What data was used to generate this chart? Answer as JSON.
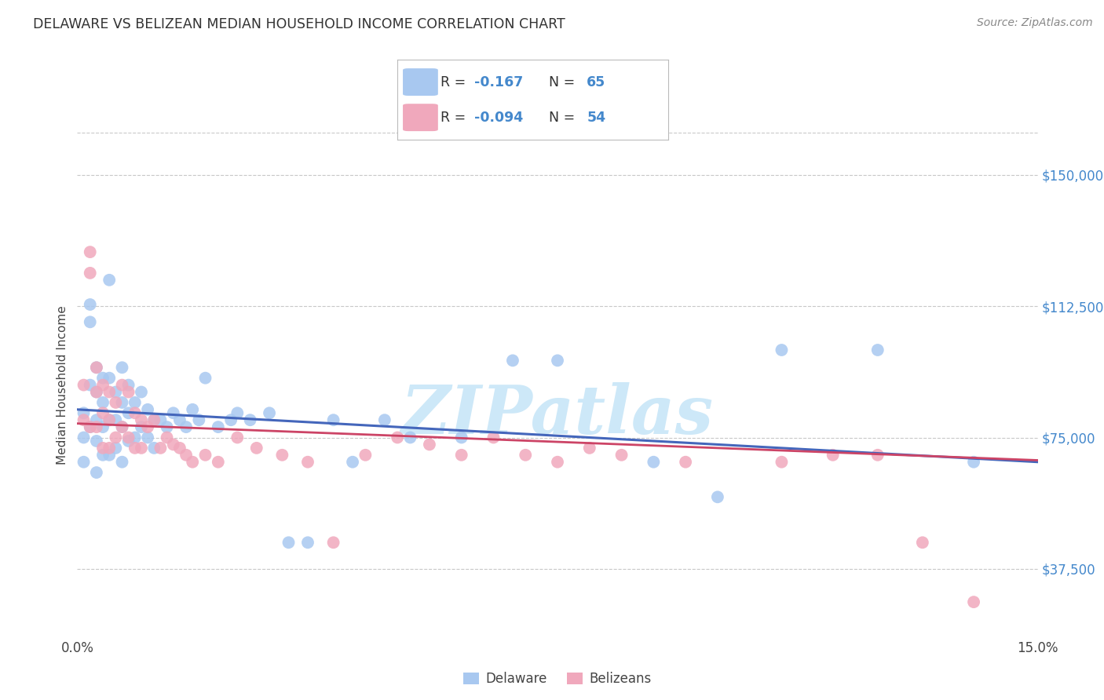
{
  "title": "DELAWARE VS BELIZEAN MEDIAN HOUSEHOLD INCOME CORRELATION CHART",
  "source": "Source: ZipAtlas.com",
  "ylabel": "Median Household Income",
  "xlim": [
    0.0,
    0.15
  ],
  "ylim": [
    18000,
    162000
  ],
  "yticks": [
    37500,
    75000,
    112500,
    150000
  ],
  "ytick_labels": [
    "$37,500",
    "$75,000",
    "$112,500",
    "$150,000"
  ],
  "xticks": [
    0.0,
    0.025,
    0.05,
    0.075,
    0.1,
    0.125,
    0.15
  ],
  "xtick_labels": [
    "0.0%",
    "",
    "",
    "",
    "",
    "",
    "15.0%"
  ],
  "background_color": "#ffffff",
  "grid_color": "#c8c8c8",
  "blue_color": "#a8c8f0",
  "pink_color": "#f0a8bc",
  "blue_line_color": "#4466bb",
  "pink_line_color": "#cc4466",
  "watermark_color": "#cde8f8",
  "accent_color": "#4488cc",
  "legend_r_blue": "-0.167",
  "legend_n_blue": "65",
  "legend_r_pink": "-0.094",
  "legend_n_pink": "54",
  "delaware_x": [
    0.001,
    0.001,
    0.001,
    0.002,
    0.002,
    0.002,
    0.002,
    0.003,
    0.003,
    0.003,
    0.003,
    0.003,
    0.004,
    0.004,
    0.004,
    0.004,
    0.005,
    0.005,
    0.005,
    0.005,
    0.006,
    0.006,
    0.006,
    0.007,
    0.007,
    0.007,
    0.007,
    0.008,
    0.008,
    0.008,
    0.009,
    0.009,
    0.01,
    0.01,
    0.011,
    0.011,
    0.012,
    0.012,
    0.013,
    0.014,
    0.015,
    0.016,
    0.017,
    0.018,
    0.019,
    0.02,
    0.022,
    0.024,
    0.025,
    0.027,
    0.03,
    0.033,
    0.036,
    0.04,
    0.043,
    0.048,
    0.052,
    0.06,
    0.068,
    0.075,
    0.09,
    0.1,
    0.11,
    0.125,
    0.14
  ],
  "delaware_y": [
    82000,
    75000,
    68000,
    113000,
    108000,
    90000,
    78000,
    95000,
    88000,
    80000,
    74000,
    65000,
    92000,
    85000,
    78000,
    70000,
    120000,
    92000,
    80000,
    70000,
    88000,
    80000,
    72000,
    95000,
    85000,
    78000,
    68000,
    90000,
    82000,
    74000,
    85000,
    75000,
    88000,
    78000,
    83000,
    75000,
    80000,
    72000,
    80000,
    78000,
    82000,
    80000,
    78000,
    83000,
    80000,
    92000,
    78000,
    80000,
    82000,
    80000,
    82000,
    45000,
    45000,
    80000,
    68000,
    80000,
    75000,
    75000,
    97000,
    97000,
    68000,
    58000,
    100000,
    100000,
    68000
  ],
  "belizean_x": [
    0.001,
    0.001,
    0.002,
    0.002,
    0.002,
    0.003,
    0.003,
    0.003,
    0.004,
    0.004,
    0.004,
    0.005,
    0.005,
    0.005,
    0.006,
    0.006,
    0.007,
    0.007,
    0.008,
    0.008,
    0.009,
    0.009,
    0.01,
    0.01,
    0.011,
    0.012,
    0.013,
    0.014,
    0.015,
    0.016,
    0.017,
    0.018,
    0.02,
    0.022,
    0.025,
    0.028,
    0.032,
    0.036,
    0.04,
    0.045,
    0.05,
    0.055,
    0.06,
    0.065,
    0.07,
    0.075,
    0.08,
    0.085,
    0.095,
    0.11,
    0.118,
    0.125,
    0.132,
    0.14
  ],
  "belizean_y": [
    90000,
    80000,
    128000,
    122000,
    78000,
    95000,
    88000,
    78000,
    90000,
    82000,
    72000,
    88000,
    80000,
    72000,
    85000,
    75000,
    90000,
    78000,
    88000,
    75000,
    82000,
    72000,
    80000,
    72000,
    78000,
    80000,
    72000,
    75000,
    73000,
    72000,
    70000,
    68000,
    70000,
    68000,
    75000,
    72000,
    70000,
    68000,
    45000,
    70000,
    75000,
    73000,
    70000,
    75000,
    70000,
    68000,
    72000,
    70000,
    68000,
    68000,
    70000,
    70000,
    45000,
    28000
  ]
}
